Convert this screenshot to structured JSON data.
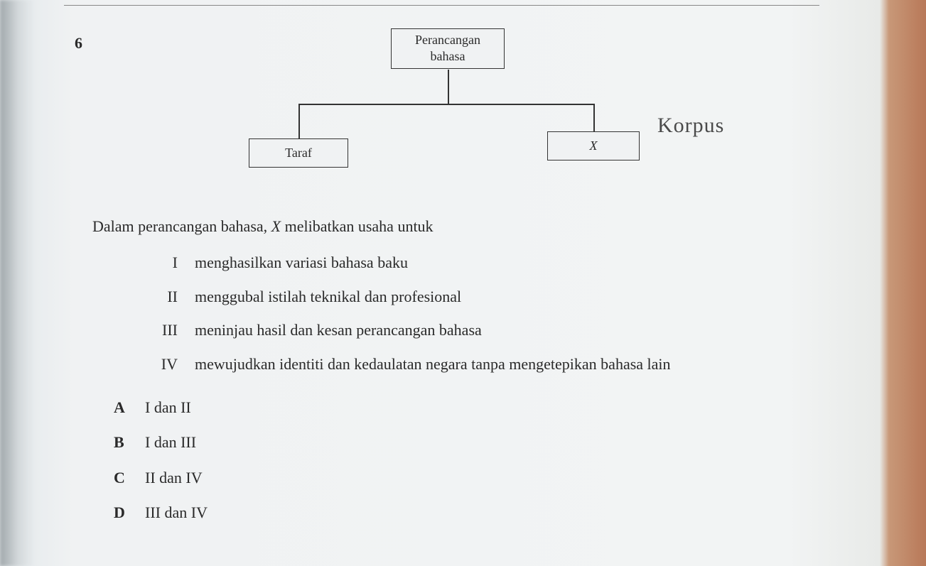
{
  "question_number": "6",
  "diagram": {
    "top_box_line1": "Perancangan",
    "top_box_line2": "bahasa",
    "left_box": "Taraf",
    "right_box": "X",
    "handwritten_annotation": "Korpus",
    "box_border_color": "#333333",
    "line_color": "#333333"
  },
  "stem": {
    "prefix": "Dalam perancangan bahasa, ",
    "placeholder": "X",
    "suffix": " melibatkan usaha untuk"
  },
  "statements": [
    {
      "roman": "I",
      "text": "menghasilkan variasi bahasa baku"
    },
    {
      "roman": "II",
      "text": "menggubal istilah teknikal dan profesional"
    },
    {
      "roman": "III",
      "text": "meninjau hasil dan kesan perancangan bahasa"
    },
    {
      "roman": "IV",
      "text": "mewujudkan identiti dan kedaulatan negara tanpa mengetepikan bahasa lain"
    }
  ],
  "options": [
    {
      "letter": "A",
      "text": "I dan II"
    },
    {
      "letter": "B",
      "text": "I dan III"
    },
    {
      "letter": "C",
      "text": "II dan IV"
    },
    {
      "letter": "D",
      "text": "III dan IV"
    }
  ],
  "colors": {
    "paper_bg": "#f2f4f4",
    "text_color": "#2a2a2a",
    "handwriting_color": "#4a4a4a"
  },
  "typography": {
    "body_font": "Times New Roman",
    "body_fontsize_pt": 16,
    "handwriting_font": "cursive",
    "handwriting_fontsize_pt": 22
  }
}
